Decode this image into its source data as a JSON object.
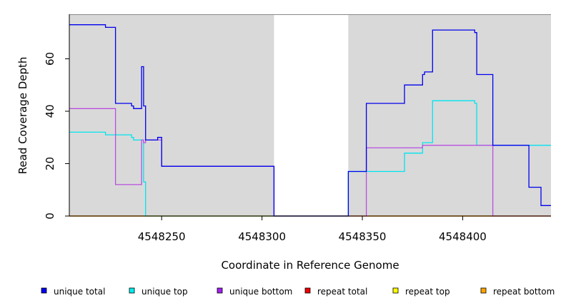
{
  "chart_data": {
    "type": "line",
    "title": "",
    "xlabel": "Coordinate in Reference Genome",
    "ylabel": "Read Coverage Depth",
    "xlim": [
      4548204,
      4548444
    ],
    "ylim": [
      0,
      77
    ],
    "x_ticks": [
      4548250,
      4548300,
      4548350,
      4548400
    ],
    "y_ticks": [
      0,
      20,
      40,
      60
    ],
    "grid": false,
    "background_color": "#d9d9d9",
    "gap_color": "#ffffff",
    "covered_regions": [
      [
        4548204,
        4548306
      ],
      [
        4548343,
        4548444
      ]
    ],
    "legend_position": "bottom",
    "series": [
      {
        "name": "unique total",
        "color": "#0000ee",
        "points": [
          [
            4548204,
            73
          ],
          [
            4548222,
            73
          ],
          [
            4548222,
            72
          ],
          [
            4548227,
            72
          ],
          [
            4548227,
            43
          ],
          [
            4548235,
            43
          ],
          [
            4548235,
            42
          ],
          [
            4548236,
            42
          ],
          [
            4548236,
            41
          ],
          [
            4548240,
            41
          ],
          [
            4548240,
            57
          ],
          [
            4548241,
            57
          ],
          [
            4548241,
            42
          ],
          [
            4548242,
            42
          ],
          [
            4548242,
            29
          ],
          [
            4548248,
            29
          ],
          [
            4548248,
            30
          ],
          [
            4548250,
            30
          ],
          [
            4548250,
            19
          ],
          [
            4548306,
            19
          ],
          [
            4548306,
            0
          ],
          [
            4548343,
            0
          ],
          [
            4548343,
            17
          ],
          [
            4548352,
            17
          ],
          [
            4548352,
            43
          ],
          [
            4548371,
            43
          ],
          [
            4548371,
            50
          ],
          [
            4548380,
            50
          ],
          [
            4548380,
            54
          ],
          [
            4548381,
            54
          ],
          [
            4548381,
            55
          ],
          [
            4548385,
            55
          ],
          [
            4548385,
            71
          ],
          [
            4548406,
            71
          ],
          [
            4548406,
            70
          ],
          [
            4548407,
            70
          ],
          [
            4548407,
            54
          ],
          [
            4548415,
            54
          ],
          [
            4548415,
            27
          ],
          [
            4548433,
            27
          ],
          [
            4548433,
            11
          ],
          [
            4548439,
            11
          ],
          [
            4548439,
            4
          ],
          [
            4548444,
            4
          ]
        ]
      },
      {
        "name": "unique top",
        "color": "#00e5ee",
        "points": [
          [
            4548204,
            32
          ],
          [
            4548222,
            32
          ],
          [
            4548222,
            31
          ],
          [
            4548235,
            31
          ],
          [
            4548235,
            30
          ],
          [
            4548236,
            30
          ],
          [
            4548236,
            29
          ],
          [
            4548241,
            29
          ],
          [
            4548241,
            13
          ],
          [
            4548242,
            13
          ],
          [
            4548242,
            0
          ],
          [
            4548343,
            0
          ],
          [
            4548343,
            17
          ],
          [
            4548371,
            17
          ],
          [
            4548371,
            24
          ],
          [
            4548380,
            24
          ],
          [
            4548380,
            28
          ],
          [
            4548385,
            28
          ],
          [
            4548385,
            44
          ],
          [
            4548406,
            44
          ],
          [
            4548406,
            43
          ],
          [
            4548407,
            43
          ],
          [
            4548407,
            27
          ],
          [
            4548444,
            27
          ]
        ]
      },
      {
        "name": "unique bottom",
        "color": "#b94fe0",
        "points": [
          [
            4548204,
            41
          ],
          [
            4548227,
            41
          ],
          [
            4548227,
            12
          ],
          [
            4548240,
            12
          ],
          [
            4548240,
            29
          ],
          [
            4548241,
            29
          ],
          [
            4548241,
            28
          ],
          [
            4548242,
            28
          ],
          [
            4548242,
            29
          ],
          [
            4548250,
            29
          ],
          [
            4548250,
            19
          ],
          [
            4548306,
            19
          ],
          [
            4548306,
            0
          ],
          [
            4548352,
            0
          ],
          [
            4548352,
            26
          ],
          [
            4548380,
            26
          ],
          [
            4548380,
            27
          ],
          [
            4548415,
            27
          ],
          [
            4548415,
            0
          ],
          [
            4548444,
            0
          ]
        ]
      },
      {
        "name": "repeat total",
        "color": "#ee0000",
        "points": [
          [
            4548204,
            0
          ],
          [
            4548444,
            0
          ]
        ]
      },
      {
        "name": "repeat top",
        "color": "#eeee00",
        "points": [
          [
            4548204,
            0
          ],
          [
            4548444,
            0
          ]
        ]
      },
      {
        "name": "repeat bottom",
        "color": "#ee9a00",
        "points": [
          [
            4548204,
            0
          ],
          [
            4548444,
            0
          ]
        ]
      }
    ]
  },
  "legend": {
    "items": [
      {
        "label": "unique total",
        "color": "#0000ee"
      },
      {
        "label": "unique top",
        "color": "#00eeee"
      },
      {
        "label": "unique bottom",
        "color": "#a020f0"
      },
      {
        "label": "repeat total",
        "color": "#ee0000"
      },
      {
        "label": "repeat top",
        "color": "#ffff00"
      },
      {
        "label": "repeat bottom",
        "color": "#ffa500"
      }
    ]
  }
}
